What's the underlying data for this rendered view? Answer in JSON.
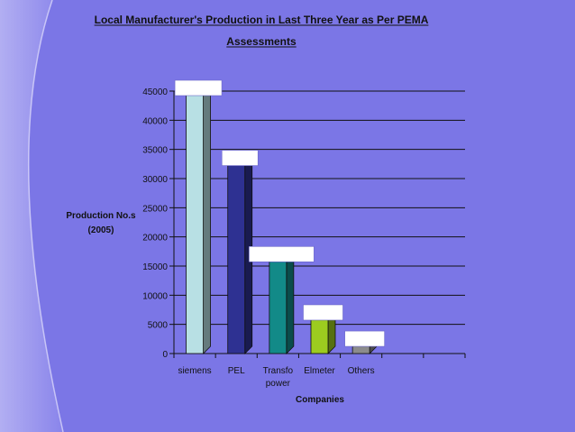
{
  "chart_data": {
    "type": "bar",
    "title_lines": [
      "Local Manufacturer's Production in Last Three Year as Per PEMA",
      "Assessments"
    ],
    "ylabel_lines": [
      "Production No.s",
      "(2005)"
    ],
    "xlabel": "Companies",
    "categories": [
      {
        "lines": [
          "siemens"
        ]
      },
      {
        "lines": [
          "PEL"
        ]
      },
      {
        "lines": [
          "Transfo",
          "power"
        ]
      },
      {
        "lines": [
          "Elmeter"
        ]
      },
      {
        "lines": [
          "Others"
        ]
      },
      {
        "lines": [
          ""
        ]
      },
      {
        "lines": [
          ""
        ]
      }
    ],
    "values": [
      45000,
      33000,
      16500,
      6500,
      2000,
      null,
      null
    ],
    "bar_colors": [
      "#b8e0e4",
      "#2e3192",
      "#128a88",
      "#9ccc1f",
      "#8c8c8c",
      null,
      null
    ],
    "ylim": [
      0,
      45000
    ],
    "yticks": [
      0,
      5000,
      10000,
      15000,
      20000,
      25000,
      30000,
      35000,
      40000,
      45000
    ],
    "grid": true,
    "legend": "none"
  }
}
